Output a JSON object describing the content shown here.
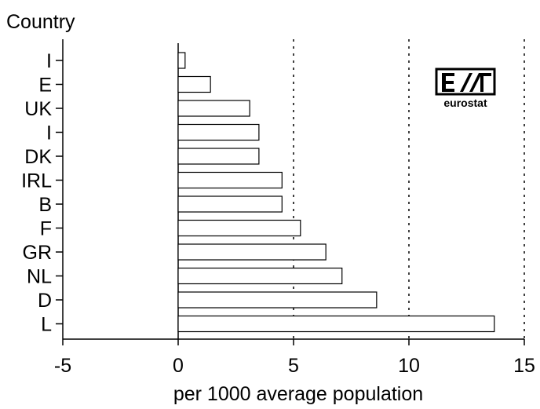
{
  "chart_data": {
    "type": "bar",
    "orientation": "horizontal",
    "title": "",
    "ylabel": "Country",
    "xlabel": "per 1000 average population",
    "categories": [
      "I",
      "E",
      "UK",
      "I",
      "DK",
      "IRL",
      "B",
      "F",
      "GR",
      "NL",
      "D",
      "L"
    ],
    "values": [
      0.3,
      1.4,
      3.1,
      3.5,
      3.5,
      4.5,
      4.5,
      5.3,
      6.4,
      7.1,
      8.6,
      13.7
    ],
    "xlim": [
      -5,
      15
    ],
    "xticks": [
      "-5",
      "0",
      "5",
      "10",
      "15"
    ],
    "reference_lines": [
      5,
      10,
      15
    ],
    "grid": false,
    "bar_fill": "#ffffff",
    "bar_stroke": "#000000"
  },
  "logo": {
    "name": "eurostat-logo",
    "text": "eurostat"
  }
}
